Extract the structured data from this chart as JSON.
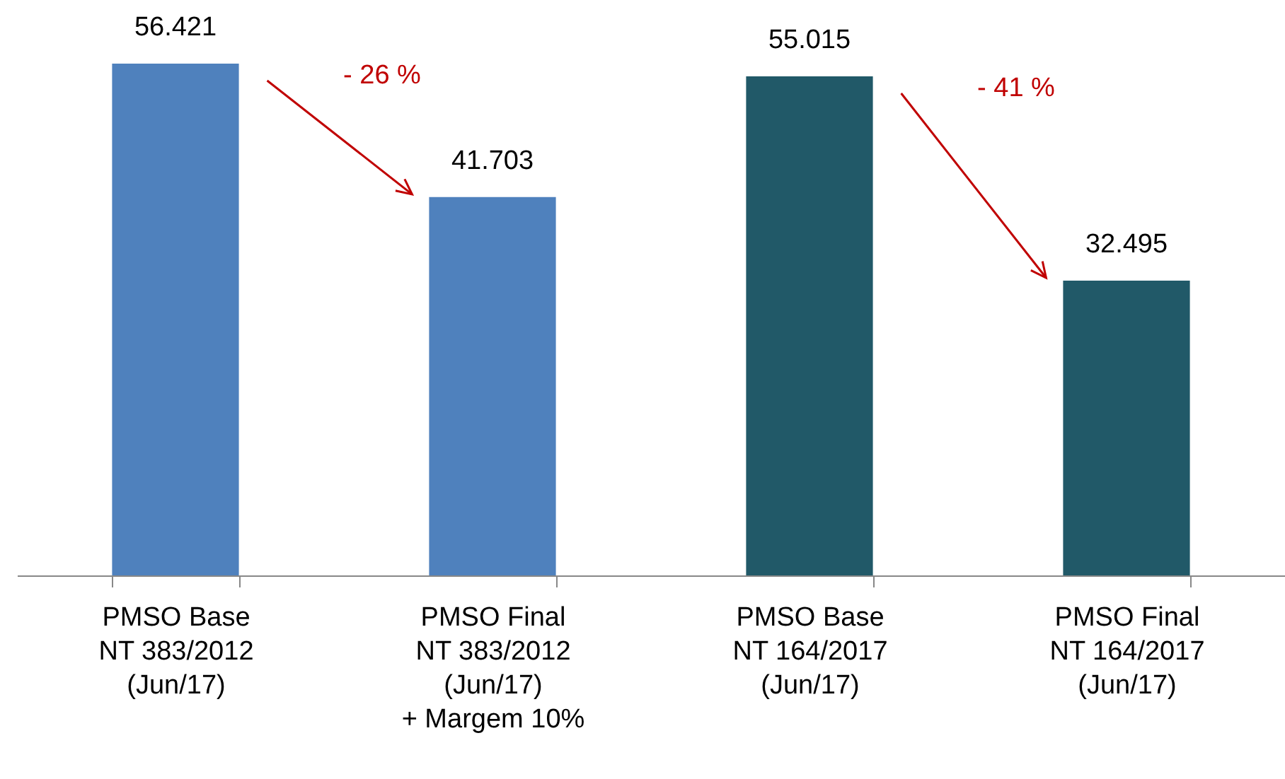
{
  "chart_data": {
    "type": "bar",
    "categories": [
      "PMSO Base\nNT 383/2012\n(Jun/17)",
      "PMSO Final\nNT 383/2012\n(Jun/17)\n+ Margem 10%",
      "PMSO Base\nNT 164/2017\n(Jun/17)",
      "PMSO Final\nNT 164/2017\n(Jun/17)"
    ],
    "values": [
      56421,
      41703,
      55015,
      32495
    ],
    "value_labels": [
      "56.421",
      "41.703",
      "55.015",
      "32.495"
    ],
    "colors": [
      "#4f81bd",
      "#4f81bd",
      "#215968",
      "#215968"
    ],
    "annotations": [
      "- 26 %",
      "- 41 %"
    ]
  }
}
